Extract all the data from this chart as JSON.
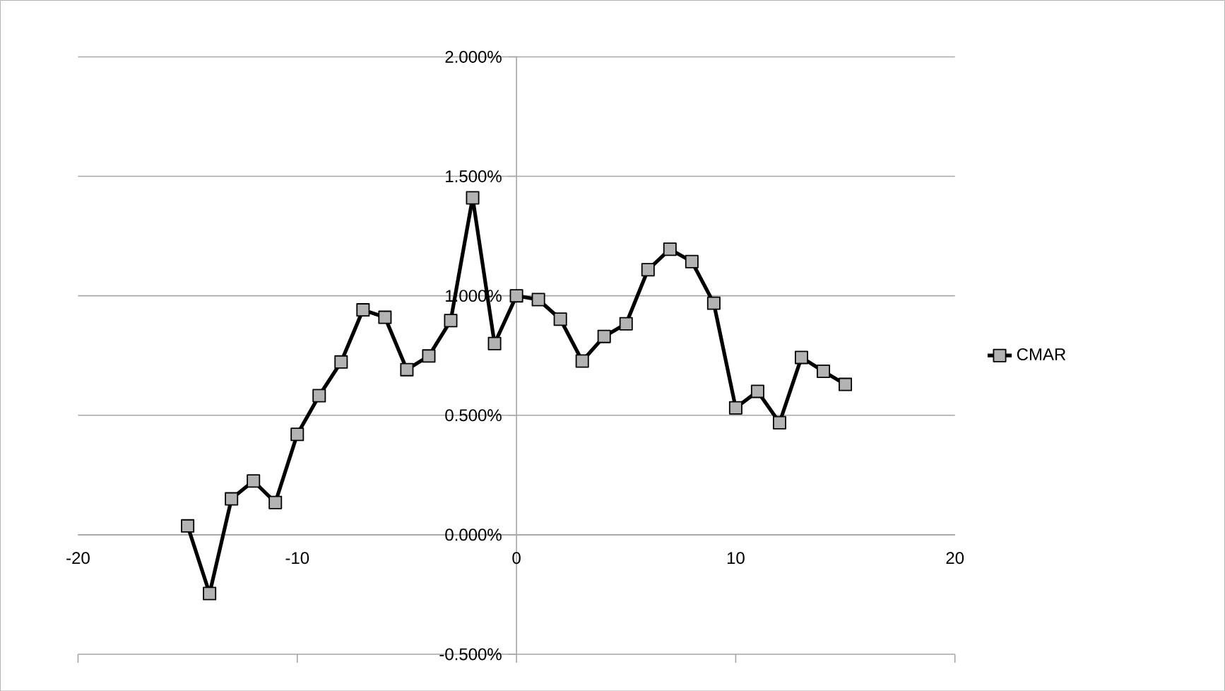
{
  "chart_data": {
    "type": "line",
    "x": [
      -15,
      -14,
      -13,
      -12,
      -11,
      -10,
      -9,
      -8,
      -7,
      -6,
      -5,
      -4,
      -3,
      -2,
      -1,
      0,
      1,
      2,
      3,
      4,
      5,
      6,
      7,
      8,
      9,
      10,
      11,
      12,
      13,
      14,
      15
    ],
    "series": [
      {
        "name": "CMAR",
        "color": "#000000",
        "values": [
          0.037,
          -0.246,
          0.15,
          0.225,
          0.135,
          0.42,
          0.582,
          0.723,
          0.941,
          0.91,
          0.691,
          0.748,
          0.896,
          1.41,
          0.8,
          1.0,
          0.984,
          0.902,
          0.727,
          0.83,
          0.883,
          1.109,
          1.195,
          1.143,
          0.969,
          0.531,
          0.6,
          0.469,
          0.742,
          0.684,
          0.629
        ]
      }
    ],
    "xlim": [
      -20,
      20
    ],
    "xticks": [
      -20,
      -10,
      0,
      10,
      20
    ],
    "ylim": [
      -0.5,
      2
    ],
    "yticks": [
      {
        "value": -0.5,
        "label": "-0.500%"
      },
      {
        "value": 0,
        "label": "0.000%"
      },
      {
        "value": 0.5,
        "label": "0.500%"
      },
      {
        "value": 1,
        "label": "1.000%"
      },
      {
        "value": 1.5,
        "label": "1.500%"
      },
      {
        "value": 2,
        "label": "2.000%"
      }
    ],
    "grid": "y",
    "legend": "right",
    "marker": "square",
    "line_style": "solid"
  }
}
